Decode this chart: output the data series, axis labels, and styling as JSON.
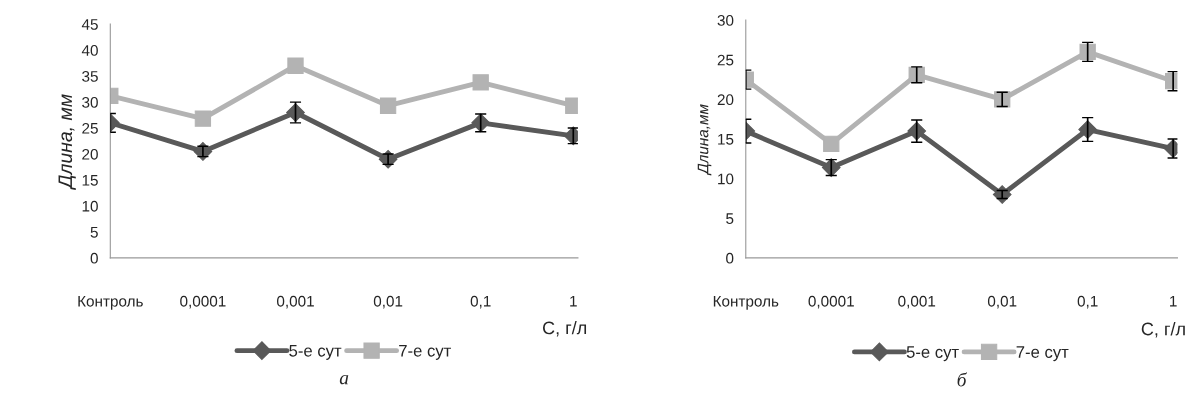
{
  "chart_data": [
    {
      "type": "line",
      "ylabel": "Длина, мм",
      "xlabel": "C, г/л",
      "categories": [
        "Контроль",
        "0,0001",
        "0,001",
        "0,01",
        "0,1",
        "1"
      ],
      "ylim": [
        0,
        45
      ],
      "yticks": [
        0,
        5,
        10,
        15,
        20,
        25,
        30,
        35,
        40,
        45
      ],
      "legend": "bottom",
      "grid": false,
      "annotations": [
        "а"
      ],
      "series": [
        {
          "name": "5-е сут",
          "color": "#595959",
          "marker": "diamond",
          "values": [
            26,
            20.5,
            28,
            19,
            26,
            23.5
          ],
          "errors": [
            1.8,
            1,
            2,
            1,
            1.7,
            1.5
          ]
        },
        {
          "name": "7-е сут",
          "color": "#b3b3b3",
          "marker": "square",
          "values": [
            31.2,
            26.8,
            37,
            29.3,
            33.8,
            29.3
          ]
        }
      ]
    },
    {
      "type": "line",
      "ylabel": "Длина,мм",
      "xlabel": "C, г/л",
      "categories": [
        "Контроль",
        "0,0001",
        "0,001",
        "0,01",
        "0,1",
        "1"
      ],
      "ylim": [
        0,
        30
      ],
      "yticks": [
        0,
        5,
        10,
        15,
        20,
        25,
        30
      ],
      "legend": "bottom",
      "grid": false,
      "annotations": [
        "б"
      ],
      "series": [
        {
          "name": "5-е сут",
          "color": "#595959",
          "marker": "diamond",
          "values": [
            16,
            11.4,
            16,
            8,
            16.2,
            13.8
          ],
          "errors": [
            1.5,
            1,
            1.4,
            0.5,
            1.5,
            1.2
          ]
        },
        {
          "name": "7-е сут",
          "color": "#b3b3b3",
          "marker": "square",
          "values": [
            22.5,
            14.4,
            23.1,
            20,
            26,
            22.3
          ],
          "errors": [
            1.2,
            null,
            1,
            0.9,
            1.2,
            1.2
          ]
        }
      ]
    }
  ]
}
